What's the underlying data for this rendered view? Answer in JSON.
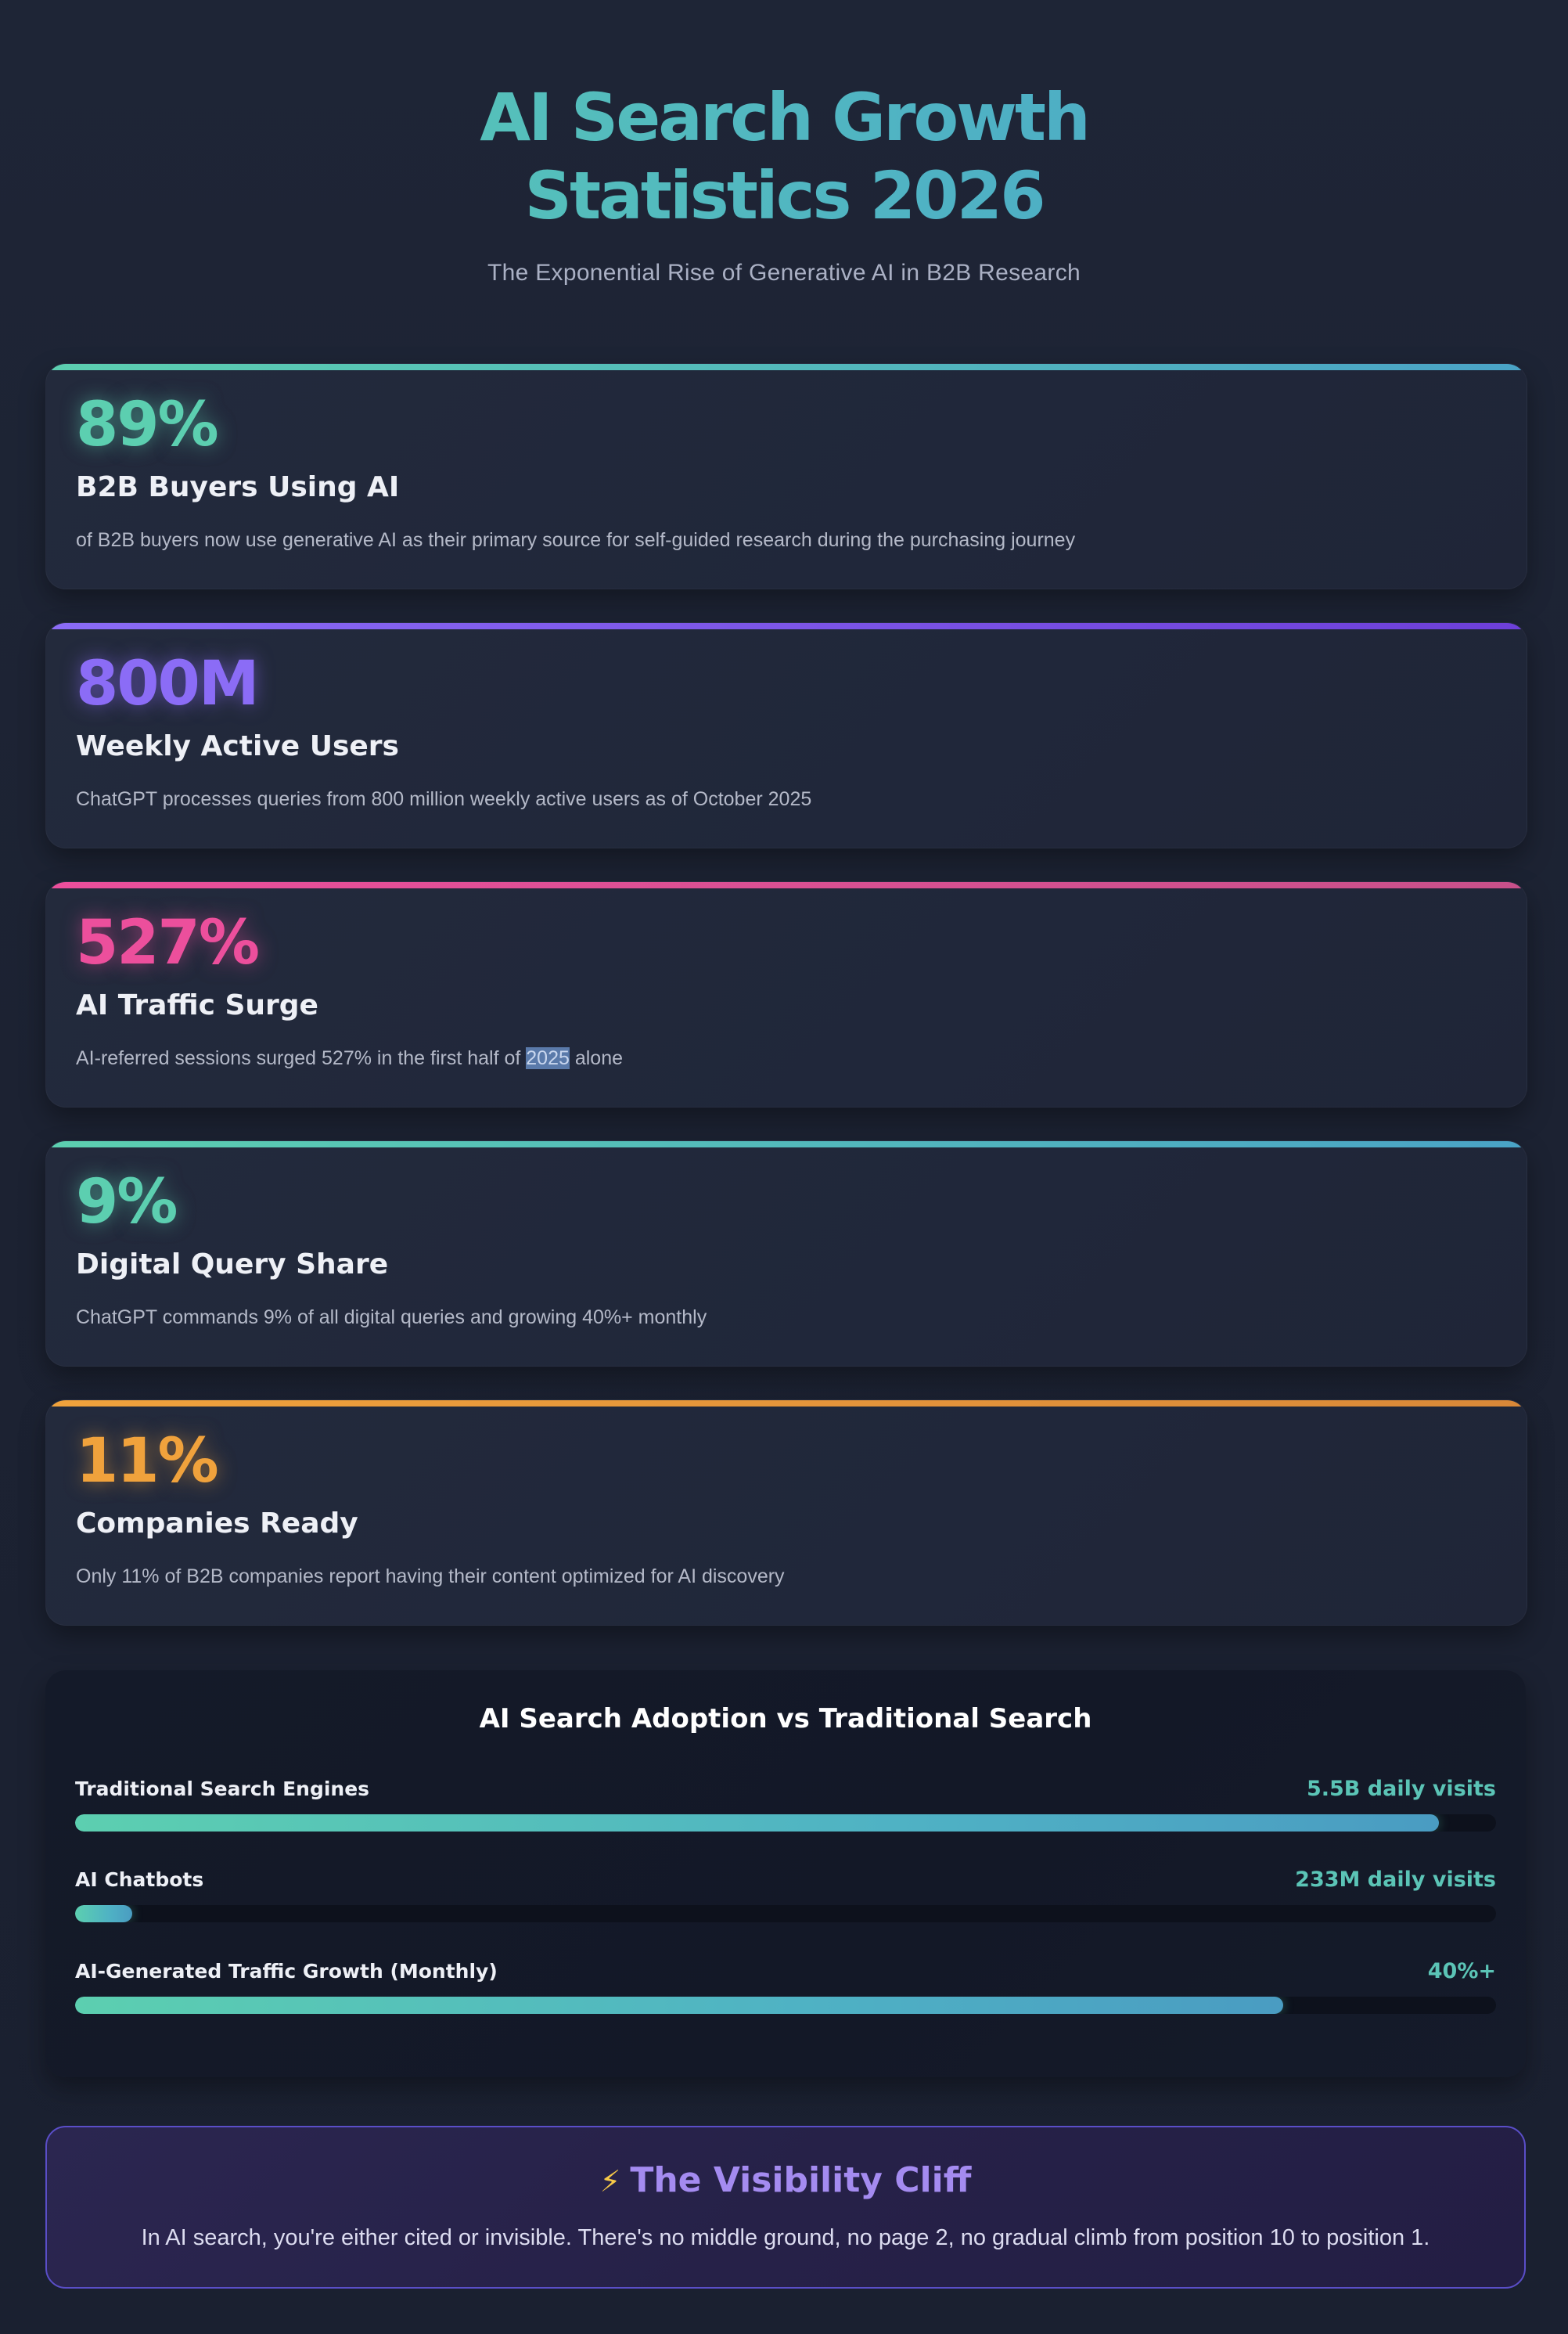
{
  "header": {
    "title_line1": "AI Search Growth",
    "title_line2": "Statistics 2026",
    "subtitle": "The Exponential Rise of Generative AI in B2B Research"
  },
  "stats": [
    {
      "value": "89%",
      "label": "B2B Buyers Using AI",
      "description": "of B2B buyers now use generative AI as their primary source for self-guided research during the purchasing journey",
      "accent": "#5ccfb0"
    },
    {
      "value": "800M",
      "label": "Weekly Active Users",
      "description": "ChatGPT processes queries from 800 million weekly active users as of October 2025",
      "accent": "#8b6cf6"
    },
    {
      "value": "527%",
      "label": "AI Traffic Surge",
      "description_before": "AI-referred sessions surged 527% in the first half of ",
      "description_selected": "2025",
      "description_after": " alone",
      "accent": "#ec4f9c"
    },
    {
      "value": "9%",
      "label": "Digital Query Share",
      "description": "ChatGPT commands 9% of all digital queries and growing 40%+ monthly",
      "accent": "#5ccfb0"
    },
    {
      "value": "11%",
      "label": "Companies Ready",
      "description": "Only 11% of B2B companies report having their content optimized for AI discovery",
      "accent": "#f0a23c"
    }
  ],
  "comparison": {
    "title": "AI Search Adoption vs Traditional Search",
    "metrics": [
      {
        "label": "Traditional Search Engines",
        "value": "5.5B daily visits",
        "fill": 0.96
      },
      {
        "label": "AI Chatbots",
        "value": "233M daily visits",
        "fill": 0.04
      },
      {
        "label": "AI-Generated Traffic Growth (Monthly)",
        "value": "40%+",
        "fill": 0.85
      }
    ]
  },
  "callout": {
    "icon": "lightning-icon",
    "title": "The Visibility Cliff",
    "text": "In AI search, you're either cited or invisible. There's no middle ground, no page 2, no gradual climb from position 10 to position 1."
  }
}
